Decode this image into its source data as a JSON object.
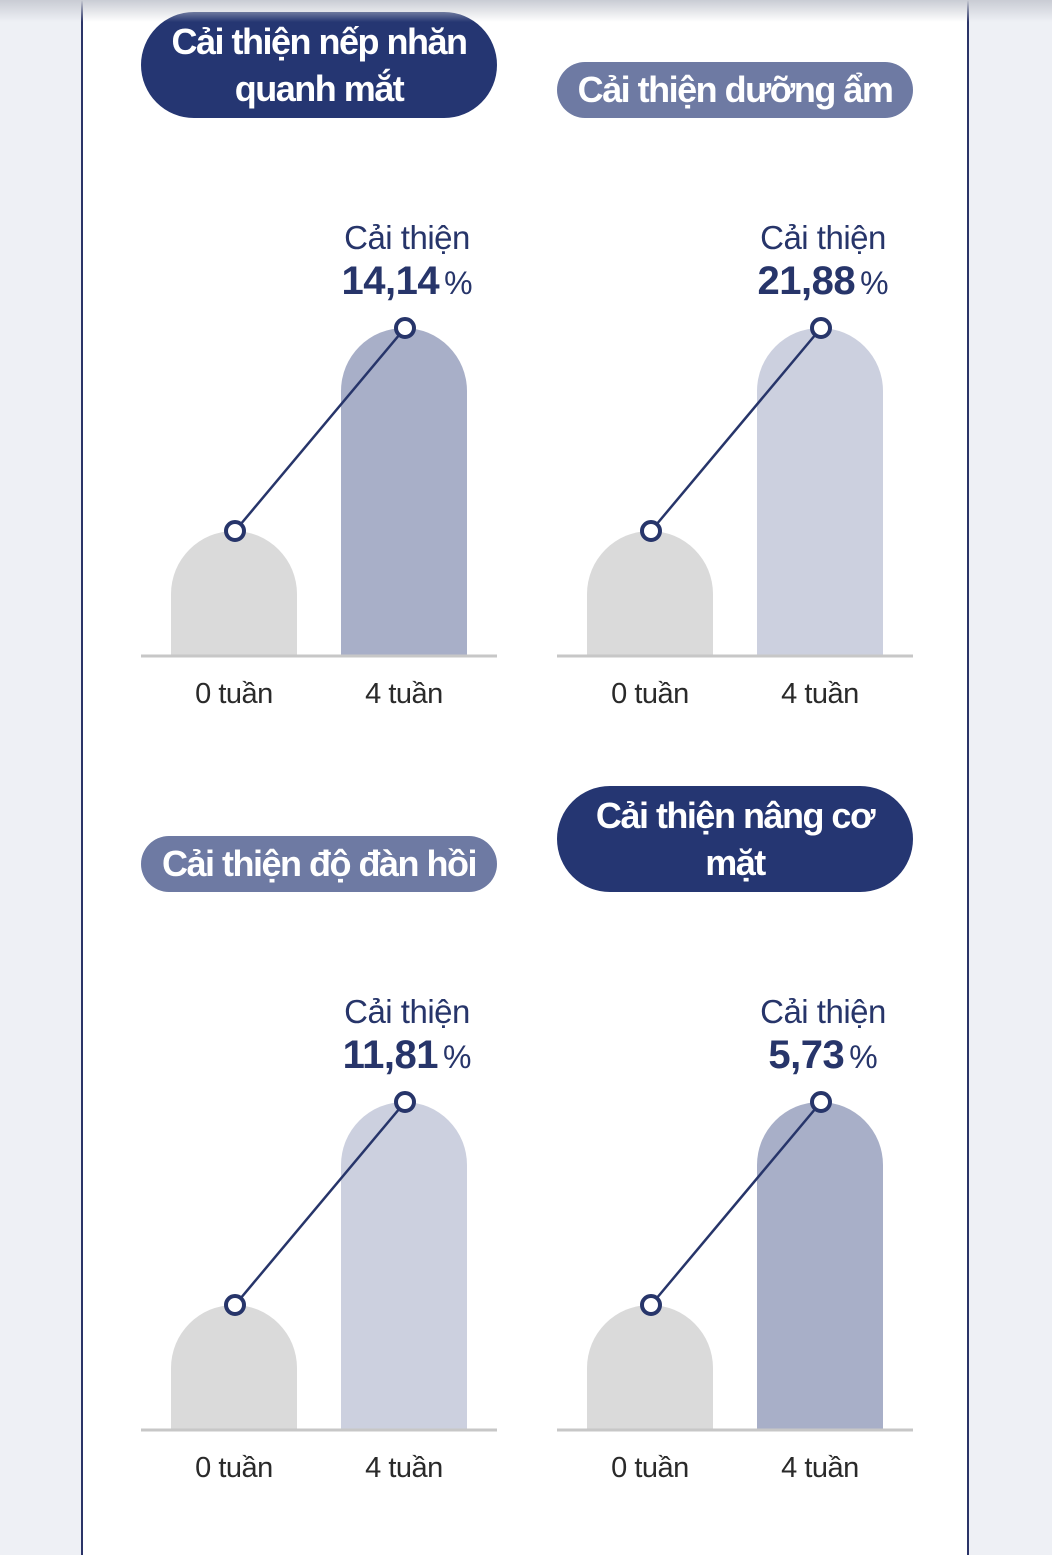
{
  "colors": {
    "pill_dark": "#253672",
    "pill_light": "#6e7aa3",
    "bar_baseline": "#dadada",
    "bar_dark": "#a8afc8",
    "bar_light": "#ccd0df",
    "line": "#27356a"
  },
  "chart_data": [
    {
      "type": "bar",
      "title": "Cải thiện nếp nhăn quanh mắt",
      "title_style": "dark",
      "categories": [
        "0 tuần",
        "4 tuần"
      ],
      "values": [
        0,
        14.14
      ],
      "annotation": {
        "label": "Cải thiện",
        "value": "14,14",
        "unit": "%"
      },
      "bar_color": "#a8afc8"
    },
    {
      "type": "bar",
      "title": "Cải thiện dưỡng ẩm",
      "title_style": "light",
      "categories": [
        "0 tuần",
        "4 tuần"
      ],
      "values": [
        0,
        21.88
      ],
      "annotation": {
        "label": "Cải thiện",
        "value": "21,88",
        "unit": "%"
      },
      "bar_color": "#ccd0df"
    },
    {
      "type": "bar",
      "title": "Cải thiện độ đàn hồi",
      "title_style": "light",
      "categories": [
        "0 tuần",
        "4 tuần"
      ],
      "values": [
        0,
        11.81
      ],
      "annotation": {
        "label": "Cải thiện",
        "value": "11,81",
        "unit": "%"
      },
      "bar_color": "#ccd0df"
    },
    {
      "type": "bar",
      "title": "Cải thiện nâng cơ mặt",
      "title_style": "dark",
      "categories": [
        "0 tuần",
        "4 tuần"
      ],
      "values": [
        0,
        5.73
      ],
      "annotation": {
        "label": "Cải thiện",
        "value": "5,73",
        "unit": "%"
      },
      "bar_color": "#a8afc8"
    }
  ]
}
